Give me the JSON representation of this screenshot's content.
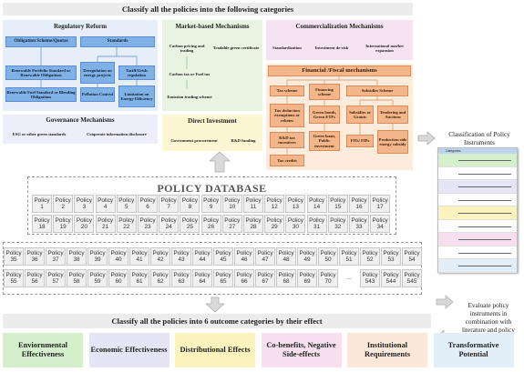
{
  "top_title": "Classify all the policies into the following categories",
  "regulatory": {
    "title": "Regulatory Reform",
    "col1_header": "Obligation Scheme/Quotas",
    "col2_header": "Standards",
    "items": [
      "Renewable Portfolio Standard or Renewable Obligations",
      "Deregulation on energy projects",
      "Tariff/Grids regulation",
      "Renewable Fuel Standard or Blending Obligations",
      "Pollution Control",
      "Limitation on Energy Efficiency"
    ]
  },
  "governance": {
    "title": "Governance Mechanisms",
    "items": [
      "ESG or other green standards",
      "Cooperate information disclosure"
    ]
  },
  "market": {
    "title": "Market-based Mechanisms",
    "items": [
      "Carbon pricing and trading",
      "Tradable green certificate",
      "Carbon tax or Fuel tax",
      "Emission trading scheme"
    ]
  },
  "direct": {
    "title": "Direct Investment",
    "items": [
      "Government procurement",
      "R&D funding"
    ]
  },
  "commercial": {
    "title": "Commercialization Mechanisms",
    "items": [
      "Standardization",
      "Investment de-risk",
      "International market expansion"
    ]
  },
  "financial": {
    "title": "Financial /Fiscal mechanisms",
    "headers": [
      "Tax scheme",
      "Financing scheme",
      "Subsidies Scheme"
    ],
    "tax_items": [
      "Tax deduction exemptions or rebates",
      "R&D tax incentives",
      "Tax credits"
    ],
    "financing_items": [
      "Green bonds, Green ETFs",
      "Green loans, Public investment"
    ],
    "subsidy_items": [
      "Subsidies or Grants",
      "Tendering and Auctions",
      "FITs/ FIPs",
      "Production side energy subsidy"
    ]
  },
  "database": {
    "title": "POLICY DATABASE",
    "row1": [
      "1",
      "2",
      "3",
      "4",
      "5",
      "6",
      "7",
      "8",
      "9",
      "10",
      "11",
      "12",
      "13",
      "14",
      "15",
      "16",
      "17"
    ],
    "row2": [
      "18",
      "19",
      "20",
      "21",
      "22",
      "23",
      "24",
      "25",
      "26",
      "27",
      "28",
      "29",
      "30",
      "31",
      "32",
      "33",
      "34"
    ],
    "row3": [
      "35",
      "36",
      "37",
      "38",
      "39",
      "40",
      "41",
      "42",
      "43",
      "44",
      "45",
      "46",
      "47",
      "48",
      "49",
      "50",
      "51",
      "52",
      "53",
      "54"
    ],
    "row4": [
      "55",
      "56",
      "57",
      "58",
      "59",
      "60",
      "61",
      "62",
      "63",
      "64",
      "65",
      "66",
      "67",
      "68",
      "69",
      "70",
      "...",
      "543",
      "544",
      "545"
    ],
    "cell_word": "Policy"
  },
  "right": {
    "classification_title": "Classification of Policy Instruments",
    "table_header": "Categories",
    "evaluate_text": "Evaluate policy instruments in combination with literature and policy facts"
  },
  "bottom": {
    "title": "Classify all the policies into 6 outcome categories by their effect",
    "outcomes": [
      {
        "label": "Enviornmental Effectiveness",
        "color": "#d4efcc"
      },
      {
        "label": "Economic Effectiveness",
        "color": "#e5e5f5"
      },
      {
        "label": "Distributional Effects",
        "color": "#fbf3bd"
      },
      {
        "label": "Co-benefits, Negative Side-effects",
        "color": "#f6e0ef"
      },
      {
        "label": "Institutional Requirements",
        "color": "#fbe8d8"
      },
      {
        "label": "Transformative Potential",
        "color": "#e2eef8"
      }
    ]
  }
}
